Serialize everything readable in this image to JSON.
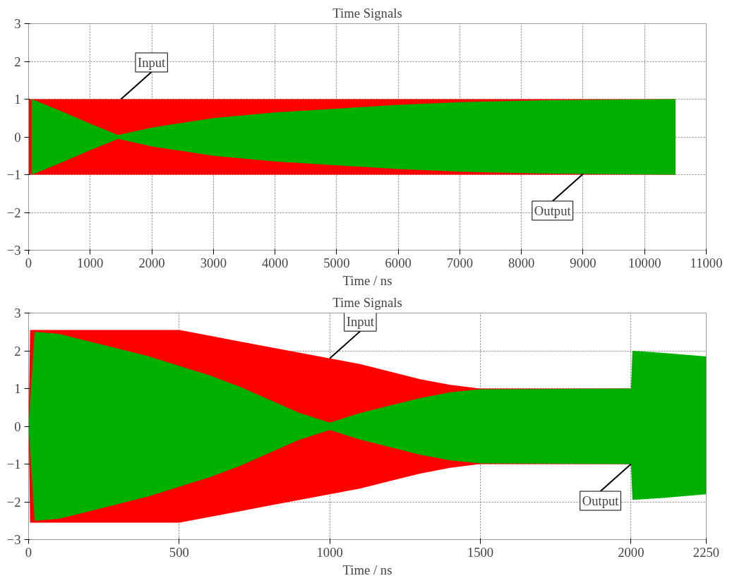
{
  "chart_data": [
    {
      "type": "area",
      "title": "Time Signals",
      "xlabel": "Time / ns",
      "xlim": [
        0,
        11000
      ],
      "ylim": [
        -3,
        3
      ],
      "xticks": [
        0,
        1000,
        2000,
        3000,
        4000,
        5000,
        6000,
        7000,
        8000,
        9000,
        10000,
        11000
      ],
      "yticks": [
        -3,
        -2,
        -1,
        0,
        1,
        2,
        3
      ],
      "grid": true,
      "series": [
        {
          "color": "#ff0000",
          "x": [
            0,
            10500
          ],
          "values": [
            1,
            1
          ]
        },
        {
          "color": "#ff0000",
          "x": [
            0,
            10500
          ],
          "values": [
            -1,
            -1
          ]
        },
        {
          "color": "#00b000",
          "x": [
            50,
            500,
            1000,
            1450,
            2000,
            3000,
            4000,
            5000,
            6000,
            7000,
            8000,
            9000,
            10500
          ],
          "values": [
            1,
            0.7,
            0.35,
            0.05,
            0.25,
            0.5,
            0.65,
            0.75,
            0.85,
            0.92,
            0.96,
            0.98,
            1
          ]
        },
        {
          "color": "#00b000",
          "x": [
            50,
            500,
            1000,
            1450,
            2000,
            3000,
            4000,
            5000,
            6000,
            7000,
            8000,
            9000,
            10500
          ],
          "values": [
            -1,
            -0.7,
            -0.35,
            -0.05,
            -0.25,
            -0.5,
            -0.65,
            -0.75,
            -0.85,
            -0.92,
            -0.96,
            -0.98,
            -1
          ]
        }
      ],
      "annotations": [
        {
          "text": "Input",
          "x": 1500,
          "y": 1
        },
        {
          "text": "Output",
          "x": 9000,
          "y": -0.98
        }
      ]
    },
    {
      "type": "area",
      "title": "Time Signals",
      "xlabel": "Time / ns",
      "xlim": [
        0,
        2250
      ],
      "ylim": [
        -3,
        3
      ],
      "xticks": [
        0,
        500,
        1000,
        1500,
        2000,
        2250
      ],
      "yticks": [
        -3,
        -2,
        -1,
        0,
        1,
        2,
        3
      ],
      "grid": true,
      "series": [
        {
          "color": "#ff0000",
          "x": [
            0,
            5,
            500,
            600,
            700,
            800,
            900,
            1000,
            1100,
            1200,
            1300,
            1400,
            1500,
            2000
          ],
          "values": [
            0,
            2.55,
            2.55,
            2.4,
            2.25,
            2.1,
            1.95,
            1.8,
            1.65,
            1.45,
            1.25,
            1.1,
            1.0,
            1.0
          ]
        },
        {
          "color": "#ff0000",
          "x": [
            0,
            5,
            500,
            600,
            700,
            800,
            900,
            1000,
            1100,
            1200,
            1300,
            1400,
            1500,
            2000
          ],
          "values": [
            0,
            -2.55,
            -2.55,
            -2.4,
            -2.25,
            -2.1,
            -1.95,
            -1.8,
            -1.65,
            -1.45,
            -1.25,
            -1.1,
            -1.0,
            -1.0
          ]
        },
        {
          "color": "#00b000",
          "x": [
            0,
            20,
            100,
            200,
            300,
            400,
            500,
            600,
            700,
            800,
            900,
            1000,
            1100,
            1200,
            1300,
            1400,
            1500,
            2000,
            2005,
            2100,
            2250
          ],
          "values": [
            0,
            2.5,
            2.45,
            2.25,
            2.05,
            1.85,
            1.6,
            1.35,
            1.05,
            0.7,
            0.35,
            0.1,
            0.35,
            0.55,
            0.75,
            0.9,
            0.98,
            1.0,
            2.0,
            1.95,
            1.85
          ]
        },
        {
          "color": "#00b000",
          "x": [
            0,
            20,
            100,
            200,
            300,
            400,
            500,
            600,
            700,
            800,
            900,
            1000,
            1100,
            1200,
            1300,
            1400,
            1500,
            2000,
            2005,
            2100,
            2250
          ],
          "values": [
            0,
            -2.5,
            -2.45,
            -2.25,
            -2.05,
            -1.85,
            -1.6,
            -1.35,
            -1.05,
            -0.7,
            -0.35,
            -0.1,
            -0.35,
            -0.55,
            -0.75,
            -0.9,
            -0.98,
            -1.0,
            -1.95,
            -1.9,
            -1.8
          ]
        }
      ],
      "annotations": [
        {
          "text": "Input",
          "x": 1000,
          "y": 1.8
        },
        {
          "text": "Output",
          "x": 2000,
          "y": -1.0
        }
      ]
    }
  ]
}
